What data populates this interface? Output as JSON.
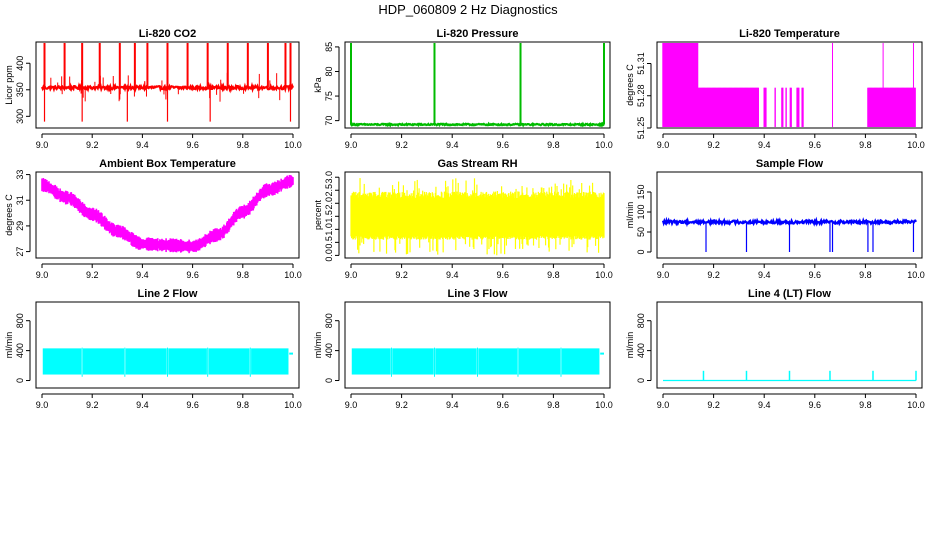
{
  "title": "HDP_060809  2 Hz Diagnostics",
  "chart_data": [
    {
      "type": "line",
      "title": "Li-820 CO2",
      "ylabel": "Licor ppm",
      "color": "#ff0000",
      "xlim": [
        9.0,
        10.0
      ],
      "ylim": [
        278,
        440
      ],
      "xticks": [
        9.0,
        9.2,
        9.4,
        9.6,
        9.8,
        10.0
      ],
      "xtick_labels": [
        "9.0",
        "9.2",
        "9.4",
        "9.6",
        "9.8",
        "10.0"
      ],
      "yticks": [
        300,
        350,
        400
      ],
      "ytick_labels": [
        "300",
        "350",
        "400"
      ],
      "series": [
        {
          "name": "CO2",
          "baseline": 354,
          "noise": 3,
          "band": 2,
          "spikes_up": [
            9.01,
            9.09,
            9.16,
            9.23,
            9.31,
            9.37,
            9.42,
            9.5,
            9.58,
            9.66,
            9.74,
            9.82,
            9.9,
            9.97,
            9.99
          ],
          "spike_up_to": 440,
          "spikes_down": [
            9.01,
            9.16,
            9.34,
            9.5,
            9.67,
            9.99
          ],
          "spike_down_to": 290
        }
      ]
    },
    {
      "type": "line",
      "title": "Li-820 Pressure",
      "ylabel": "kPa",
      "color": "#00bb00",
      "xlim": [
        9.0,
        10.0
      ],
      "ylim": [
        68.5,
        86
      ],
      "xticks": [
        9.0,
        9.2,
        9.4,
        9.6,
        9.8,
        10.0
      ],
      "xtick_labels": [
        "9.0",
        "9.2",
        "9.4",
        "9.6",
        "9.8",
        "10.0"
      ],
      "yticks": [
        70,
        75,
        80,
        85
      ],
      "ytick_labels": [
        "70",
        "75",
        "80",
        "85"
      ],
      "series": [
        {
          "name": "Pressure",
          "baseline": 69.2,
          "noise": 0.15,
          "band": 0.2,
          "spikes_up": [
            9.0,
            9.33,
            9.67,
            10.0
          ],
          "spike_up_to": 85.8,
          "spikes_down": [],
          "spike_down_to": 69
        }
      ]
    },
    {
      "type": "line",
      "title": "Li-820 Temperature",
      "ylabel": "degrees C",
      "color": "#ff00ff",
      "xlim": [
        9.0,
        10.0
      ],
      "ylim": [
        51.25,
        51.33
      ],
      "xticks": [
        9.0,
        9.2,
        9.4,
        9.6,
        9.8,
        10.0
      ],
      "xtick_labels": [
        "9.0",
        "9.2",
        "9.4",
        "9.6",
        "9.8",
        "10.0"
      ],
      "yticks": [
        51.25,
        51.28,
        51.31
      ],
      "ytick_labels": [
        "51.25",
        "51.28",
        "51.31"
      ],
      "series": [
        {
          "name": "Temperature",
          "levels": [
            51.25,
            51.2875,
            51.33
          ],
          "segments": [
            [
              9.0,
              9.14,
              "high"
            ],
            [
              9.14,
              9.38,
              "mid"
            ],
            [
              9.38,
              9.67,
              "mixlow"
            ],
            [
              9.67,
              9.81,
              "low"
            ],
            [
              9.81,
              10.0,
              "mid"
            ]
          ],
          "spikes_up": [
            9.0,
            9.03,
            9.05,
            9.08,
            9.11,
            9.67,
            9.87,
            9.99
          ]
        }
      ]
    },
    {
      "type": "line",
      "title": "Ambient Box Temperature",
      "ylabel": "degrees C",
      "color": "#ff00ff",
      "xlim": [
        9.0,
        10.0
      ],
      "ylim": [
        26.5,
        33.2
      ],
      "xticks": [
        9.0,
        9.2,
        9.4,
        9.6,
        9.8,
        10.0
      ],
      "xtick_labels": [
        "9.0",
        "9.2",
        "9.4",
        "9.6",
        "9.8",
        "10.0"
      ],
      "yticks": [
        27,
        29,
        31,
        33
      ],
      "ytick_labels": [
        "27",
        "29",
        "31",
        "33"
      ],
      "series": [
        {
          "name": "BoxTemp",
          "x": [
            9.0,
            9.1,
            9.2,
            9.3,
            9.4,
            9.5,
            9.6,
            9.7,
            9.8,
            9.9,
            10.0
          ],
          "y": [
            32.2,
            31.2,
            29.9,
            28.6,
            27.6,
            27.5,
            27.4,
            28.3,
            30.1,
            31.8,
            32.5
          ],
          "band": 0.45
        }
      ]
    },
    {
      "type": "line",
      "title": "Gas Stream RH",
      "ylabel": "percent",
      "color": "#ffff00",
      "xlim": [
        9.0,
        10.0
      ],
      "ylim": [
        -0.1,
        3.2
      ],
      "xticks": [
        9.0,
        9.2,
        9.4,
        9.6,
        9.8,
        10.0
      ],
      "xtick_labels": [
        "9.0",
        "9.2",
        "9.4",
        "9.6",
        "9.8",
        "10.0"
      ],
      "yticks": [
        0.0,
        0.5,
        1.0,
        1.5,
        2.0,
        2.5,
        3.0
      ],
      "ytick_labels": [
        "0.0",
        "0.5",
        "1.0",
        "1.5",
        "2.0",
        "2.5",
        "3.0"
      ],
      "series": [
        {
          "name": "RH",
          "low": 0.6,
          "high": 2.2,
          "spike_max": 3.0,
          "spike_min": 0.0
        }
      ]
    },
    {
      "type": "line",
      "title": "Sample Flow",
      "ylabel": "ml/min",
      "color": "#0000ff",
      "xlim": [
        9.0,
        10.0
      ],
      "ylim": [
        -15,
        200
      ],
      "xticks": [
        9.0,
        9.2,
        9.4,
        9.6,
        9.8,
        10.0
      ],
      "xtick_labels": [
        "9.0",
        "9.2",
        "9.4",
        "9.6",
        "9.8",
        "10.0"
      ],
      "yticks": [
        0,
        50,
        100,
        150
      ],
      "ytick_labels": [
        "0",
        "50",
        "100",
        "150"
      ],
      "series": [
        {
          "name": "SampleFlow",
          "baseline": 75,
          "band": 4,
          "spikes_down": [
            9.17,
            9.33,
            9.5,
            9.66,
            9.67,
            9.81,
            9.83,
            9.99
          ],
          "spike_down_to": 0
        }
      ]
    },
    {
      "type": "area",
      "title": "Line 2 Flow",
      "ylabel": "ml/min",
      "color": "#00ffff",
      "xlim": [
        9.0,
        10.0
      ],
      "ylim": [
        -100,
        1050
      ],
      "xticks": [
        9.0,
        9.2,
        9.4,
        9.6,
        9.8,
        10.0
      ],
      "xtick_labels": [
        "9.0",
        "9.2",
        "9.4",
        "9.6",
        "9.8",
        "10.0"
      ],
      "yticks": [
        0,
        400,
        800
      ],
      "ytick_labels": [
        "0",
        "400",
        "800"
      ],
      "series": [
        {
          "name": "Line2",
          "low": 80,
          "high": 430,
          "gaps": [
            9.16,
            9.33,
            9.5,
            9.66,
            9.83
          ],
          "tail": 360
        }
      ]
    },
    {
      "type": "area",
      "title": "Line 3 Flow",
      "ylabel": "ml/min",
      "color": "#00ffff",
      "xlim": [
        9.0,
        10.0
      ],
      "ylim": [
        -100,
        1050
      ],
      "xticks": [
        9.0,
        9.2,
        9.4,
        9.6,
        9.8,
        10.0
      ],
      "xtick_labels": [
        "9.0",
        "9.2",
        "9.4",
        "9.6",
        "9.8",
        "10.0"
      ],
      "yticks": [
        0,
        400,
        800
      ],
      "ytick_labels": [
        "0",
        "400",
        "800"
      ],
      "series": [
        {
          "name": "Line3",
          "low": 80,
          "high": 430,
          "gaps": [
            9.16,
            9.33,
            9.5,
            9.66,
            9.83
          ],
          "tail": 360
        }
      ]
    },
    {
      "type": "line",
      "title": "Line 4 (LT) Flow",
      "ylabel": "ml/min",
      "color": "#00ffff",
      "xlim": [
        9.0,
        10.0
      ],
      "ylim": [
        -100,
        1050
      ],
      "xticks": [
        9.0,
        9.2,
        9.4,
        9.6,
        9.8,
        10.0
      ],
      "xtick_labels": [
        "9.0",
        "9.2",
        "9.4",
        "9.6",
        "9.8",
        "10.0"
      ],
      "yticks": [
        0,
        400,
        800
      ],
      "ytick_labels": [
        "0",
        "400",
        "800"
      ],
      "series": [
        {
          "name": "Line4",
          "baseline": 0,
          "band": 0,
          "spikes_up": [
            9.16,
            9.33,
            9.5,
            9.66,
            9.83,
            10.0
          ],
          "spike_up_to": 130
        }
      ]
    }
  ]
}
